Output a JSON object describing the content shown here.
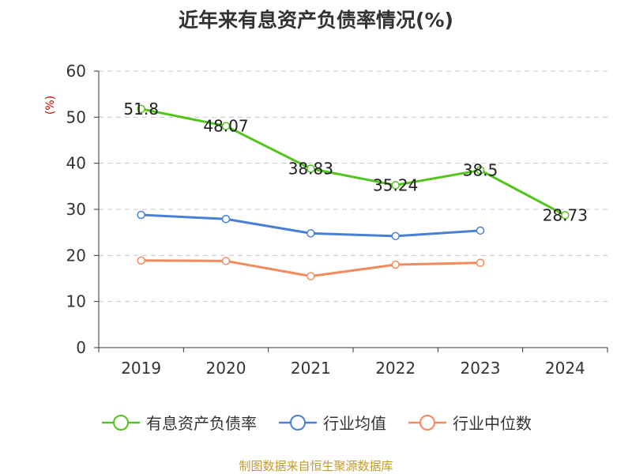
{
  "chart_data": {
    "type": "line",
    "title": "近年来有息资产负债率情况(%)",
    "y_unit": "(%)",
    "categories": [
      "2019",
      "2020",
      "2021",
      "2022",
      "2023",
      "2024"
    ],
    "ylim": [
      0,
      60
    ],
    "yticks": [
      0,
      10,
      20,
      30,
      40,
      50,
      60
    ],
    "grid": true,
    "legend_position": "bottom",
    "series": [
      {
        "name": "有息资产负债率",
        "color": "#52c41a",
        "values": [
          51.8,
          48.07,
          38.83,
          35.24,
          38.5,
          28.73
        ],
        "data_labels": [
          "51.8",
          "48.07",
          "38.83",
          "35.24",
          "38.5",
          "28.73"
        ]
      },
      {
        "name": "行业均值",
        "color": "#4a7fd6",
        "values": [
          28.8,
          27.9,
          24.8,
          24.2,
          25.4,
          null
        ]
      },
      {
        "name": "行业中位数",
        "color": "#f28a5e",
        "values": [
          18.9,
          18.8,
          15.5,
          18.0,
          18.4,
          null
        ]
      }
    ]
  },
  "footer": "制图数据来自恒生聚源数据库"
}
